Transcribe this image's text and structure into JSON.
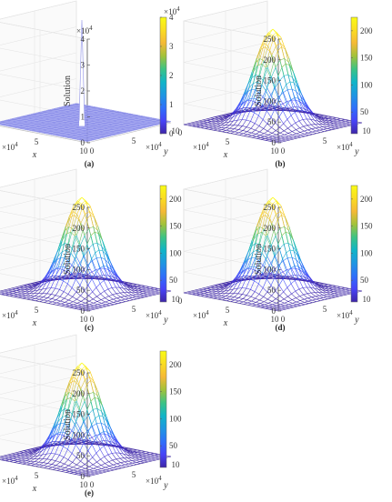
{
  "chart_data": [
    {
      "type": "surface",
      "panel": "(a)",
      "zlabel": "Solution",
      "xlabel": "x",
      "ylabel": "y",
      "x_ticks": [
        "10",
        "5",
        "0"
      ],
      "y_ticks": [
        "0",
        "5",
        "10"
      ],
      "axis_multiplier": "×10^4",
      "z_ticks": [
        "0",
        "1",
        "2",
        "3",
        "4"
      ],
      "z_multiplier": "×10^4",
      "zlim": [
        0,
        4
      ],
      "colorbar_ticks": [
        "0",
        "1",
        "2",
        "3",
        "4"
      ],
      "colorbar_multiplier": "×10^4",
      "shape": "spike",
      "peak": 4
    },
    {
      "type": "surface",
      "panel": "(b)",
      "zlabel": "Solution",
      "xlabel": "x",
      "ylabel": "y",
      "x_ticks": [
        "10",
        "5",
        "0"
      ],
      "y_ticks": [
        "0",
        "5",
        "10"
      ],
      "axis_multiplier": "×10^4",
      "z_ticks": [
        "0",
        "50",
        "100",
        "150",
        "200",
        "250"
      ],
      "zlim": [
        0,
        250
      ],
      "colorbar_ticks": [
        "50",
        "100",
        "150",
        "200"
      ],
      "colorbar_range": [
        10,
        225
      ],
      "shape": "gaussian",
      "peak": 228
    },
    {
      "type": "surface",
      "panel": "(c)",
      "zlabel": "Solution",
      "xlabel": "x",
      "ylabel": "y",
      "x_ticks": [
        "10",
        "5",
        "0"
      ],
      "y_ticks": [
        "0",
        "5",
        "10"
      ],
      "axis_multiplier": "×10^4",
      "z_ticks": [
        "0",
        "50",
        "100",
        "150",
        "200",
        "250"
      ],
      "zlim": [
        0,
        250
      ],
      "colorbar_ticks": [
        "50",
        "100",
        "150",
        "200"
      ],
      "colorbar_range": [
        10,
        225
      ],
      "shape": "gaussian",
      "peak": 228
    },
    {
      "type": "surface",
      "panel": "(d)",
      "zlabel": "Solution",
      "xlabel": "x",
      "ylabel": "y",
      "x_ticks": [
        "10",
        "5",
        "0"
      ],
      "y_ticks": [
        "0",
        "5",
        "10"
      ],
      "axis_multiplier": "×10^4",
      "z_ticks": [
        "0",
        "50",
        "100",
        "150",
        "200",
        "250"
      ],
      "zlim": [
        0,
        250
      ],
      "colorbar_ticks": [
        "50",
        "100",
        "150",
        "200"
      ],
      "colorbar_range": [
        10,
        225
      ],
      "shape": "gaussian",
      "peak": 228
    },
    {
      "type": "surface",
      "panel": "(e)",
      "zlabel": "Solution",
      "xlabel": "x",
      "ylabel": "y",
      "x_ticks": [
        "10",
        "5",
        "0"
      ],
      "y_ticks": [
        "0",
        "5",
        "10"
      ],
      "axis_multiplier": "×10^4",
      "z_ticks": [
        "0",
        "50",
        "100",
        "150",
        "200",
        "250"
      ],
      "zlim": [
        0,
        250
      ],
      "colorbar_ticks": [
        "50",
        "100",
        "150",
        "200"
      ],
      "colorbar_range": [
        10,
        225
      ],
      "shape": "gaussian",
      "peak": 228
    }
  ],
  "colormap": [
    "#3e26a8",
    "#4743f8",
    "#2f70fa",
    "#1f96e2",
    "#10b5c7",
    "#3dc384",
    "#a1c23a",
    "#f5b937",
    "#fadc22",
    "#f9fb15"
  ]
}
